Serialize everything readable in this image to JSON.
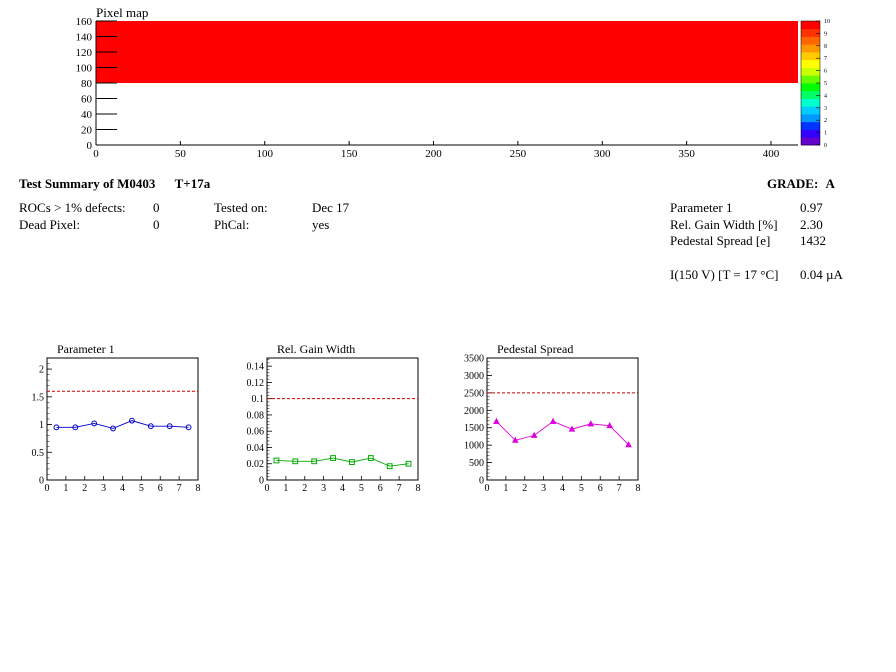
{
  "pixel_map": {
    "title": "Pixel map",
    "x_ticks": [
      "0",
      "50",
      "100",
      "150",
      "200",
      "250",
      "300",
      "350",
      "400"
    ],
    "y_ticks": [
      "0",
      "20",
      "40",
      "60",
      "80",
      "100",
      "120",
      "140",
      "160"
    ],
    "color_scale_ticks": [
      "0",
      "1",
      "2",
      "3",
      "4",
      "5",
      "6",
      "7",
      "8",
      "9",
      "10"
    ],
    "colors": {
      "fill": "#ff0000",
      "scale": [
        "#6600cc",
        "#3300ff",
        "#0033ff",
        "#0099ff",
        "#00ccff",
        "#00ffcc",
        "#00ff66",
        "#00ff00",
        "#66ff00",
        "#ccff00",
        "#ffff00",
        "#ffcc00",
        "#ff9900",
        "#ff6600",
        "#ff3300",
        "#ff0000"
      ]
    }
  },
  "summary": {
    "title": "Test Summary of M0403",
    "test_name": "T+17a",
    "grade_label": "GRADE:",
    "grade": "A",
    "rocs_label": "ROCs > 1% defects:",
    "rocs_value": "0",
    "dead_label": "Dead Pixel:",
    "dead_value": "0",
    "tested_label": "Tested on:",
    "tested_value": "Dec 17",
    "phcal_label": "PhCal:",
    "phcal_value": "yes",
    "param1_label": "Parameter 1",
    "param1_value": "0.97",
    "gain_label": "Rel. Gain Width [%]",
    "gain_value": "2.30",
    "pedestal_label": "Pedestal Spread [e]",
    "pedestal_value": "1432",
    "current_label": "I(150 V) [T = 17 °C]",
    "current_value": "0.04 µA"
  },
  "chart_data": [
    {
      "type": "heatmap",
      "title": "Pixel map",
      "xlim": [
        0,
        416
      ],
      "ylim": [
        0,
        160
      ],
      "zlim": [
        0,
        10
      ],
      "filled_region": {
        "x": [
          0,
          416
        ],
        "y": [
          80,
          160
        ],
        "z": 10
      }
    },
    {
      "type": "line",
      "title": "Parameter 1",
      "x": [
        0.5,
        1.5,
        2.5,
        3.5,
        4.5,
        5.5,
        6.5,
        7.5
      ],
      "values": [
        0.95,
        0.95,
        1.02,
        0.93,
        1.07,
        0.97,
        0.97,
        0.95
      ],
      "xlim": [
        0,
        8
      ],
      "ylim": [
        0,
        2.2
      ],
      "x_ticks": [
        "0",
        "1",
        "2",
        "3",
        "4",
        "5",
        "6",
        "7",
        "8"
      ],
      "y_ticks": [
        "0",
        "0.5",
        "1",
        "1.5",
        "2"
      ],
      "y_tick_values": [
        0,
        0.5,
        1,
        1.5,
        2
      ],
      "threshold": 1.6,
      "color": "#0000cc",
      "marker": "circle"
    },
    {
      "type": "line",
      "title": "Rel. Gain Width",
      "x": [
        0.5,
        1.5,
        2.5,
        3.5,
        4.5,
        5.5,
        6.5,
        7.5
      ],
      "values": [
        0.024,
        0.023,
        0.023,
        0.027,
        0.022,
        0.027,
        0.017,
        0.02
      ],
      "xlim": [
        0,
        8
      ],
      "ylim": [
        0,
        0.15
      ],
      "x_ticks": [
        "0",
        "1",
        "2",
        "3",
        "4",
        "5",
        "6",
        "7",
        "8"
      ],
      "y_ticks": [
        "0",
        "0.02",
        "0.04",
        "0.06",
        "0.08",
        "0.1",
        "0.12",
        "0.14"
      ],
      "y_tick_values": [
        0,
        0.02,
        0.04,
        0.06,
        0.08,
        0.1,
        0.12,
        0.14
      ],
      "threshold": 0.1,
      "color": "#00aa00",
      "marker": "square"
    },
    {
      "type": "line",
      "title": "Pedestal Spread",
      "x": [
        0.5,
        1.5,
        2.5,
        3.5,
        4.5,
        5.5,
        6.5,
        7.5
      ],
      "values": [
        1680,
        1140,
        1280,
        1680,
        1460,
        1610,
        1560,
        1010
      ],
      "xlim": [
        0,
        8
      ],
      "ylim": [
        0,
        3500
      ],
      "x_ticks": [
        "0",
        "1",
        "2",
        "3",
        "4",
        "5",
        "6",
        "7",
        "8"
      ],
      "y_ticks": [
        "0",
        "500",
        "1000",
        "1500",
        "2000",
        "2500",
        "3000",
        "3500"
      ],
      "y_tick_values": [
        0,
        500,
        1000,
        1500,
        2000,
        2500,
        3000,
        3500
      ],
      "threshold": 2500,
      "color": "#dd00dd",
      "marker": "triangle"
    }
  ]
}
